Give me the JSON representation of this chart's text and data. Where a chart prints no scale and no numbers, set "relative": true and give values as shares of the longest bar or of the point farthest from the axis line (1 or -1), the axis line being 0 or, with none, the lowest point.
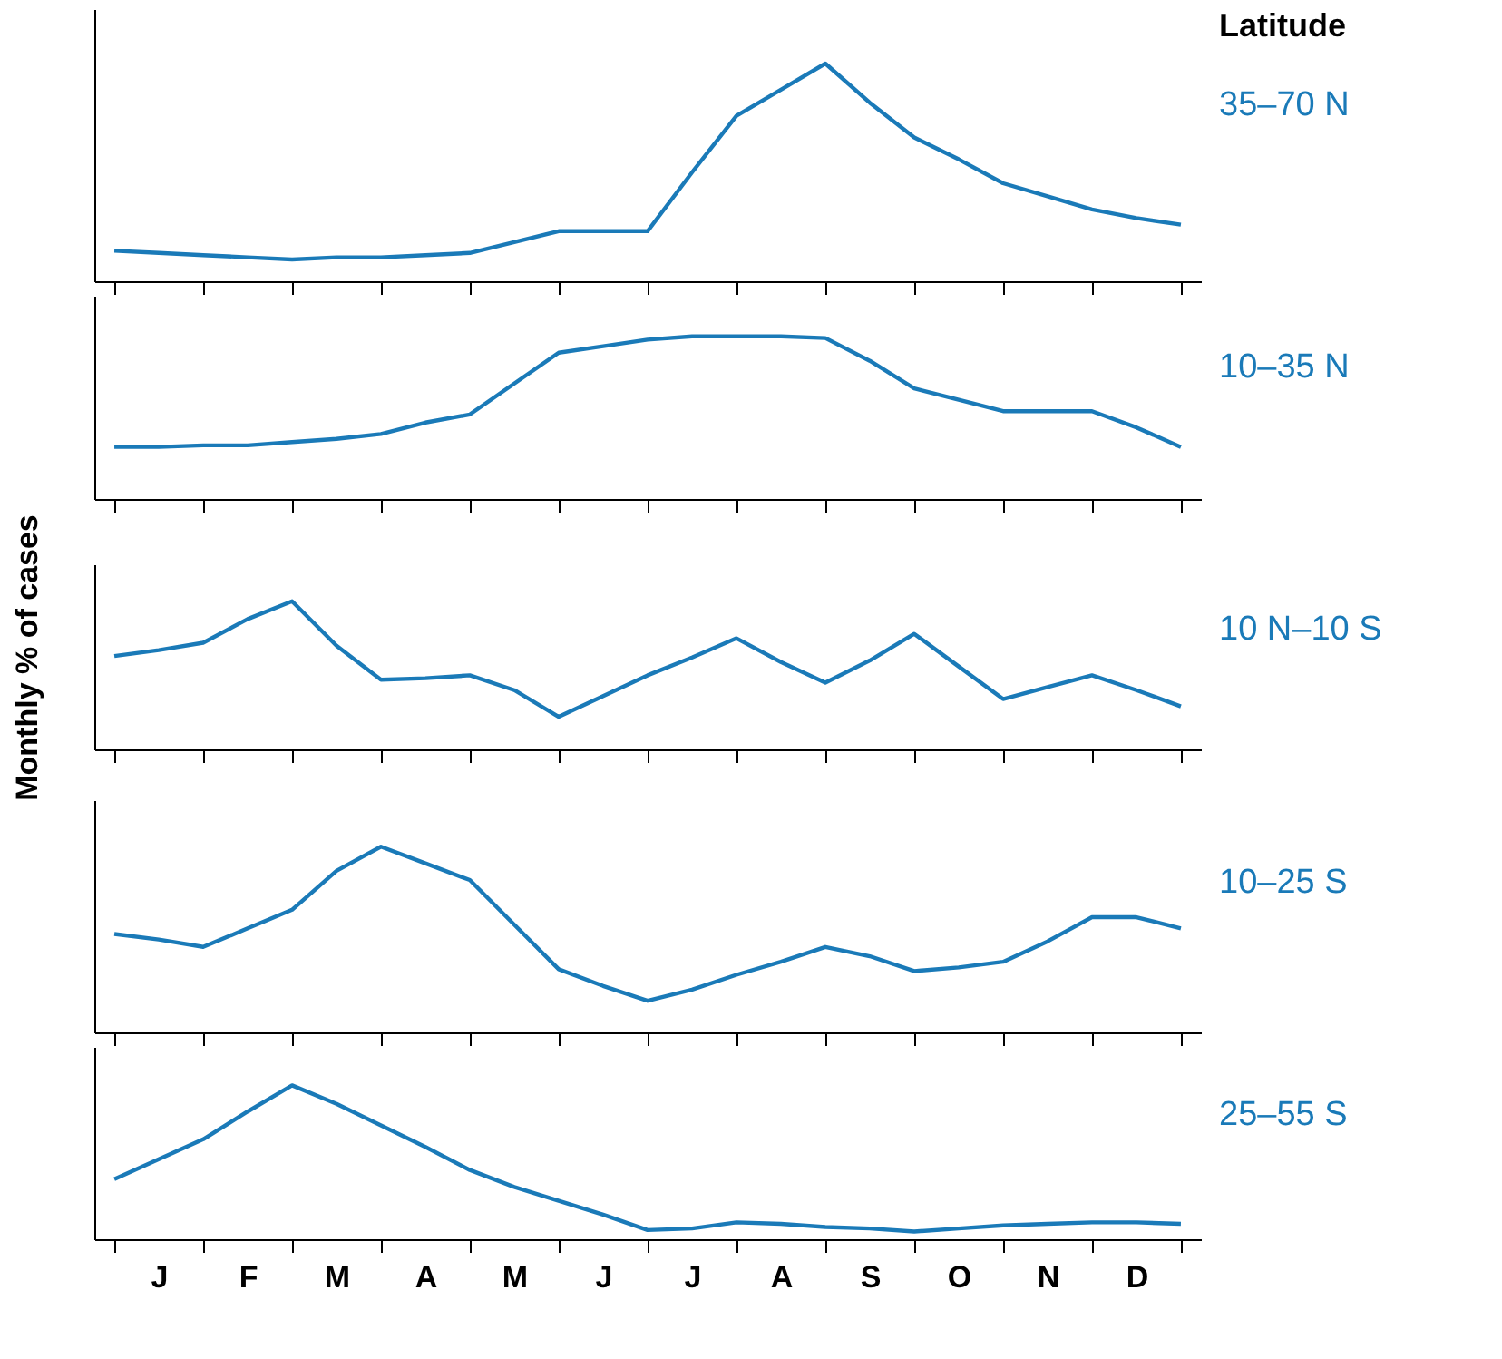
{
  "chart_data": [
    {
      "type": "line",
      "relative": true,
      "legend_title": "Latitude",
      "tick_labels": false,
      "grid": false,
      "categories": [
        null,
        null,
        null,
        null,
        null,
        null,
        null,
        null,
        null,
        null,
        null,
        null,
        null,
        null,
        null,
        null,
        null,
        null,
        null,
        null,
        null,
        null,
        null,
        null,
        null
      ],
      "series": [
        {
          "name": "35–70 N",
          "color": "#1a7ab8",
          "values": [
            0.14,
            0.13,
            0.12,
            0.11,
            0.1,
            0.11,
            0.11,
            0.12,
            0.13,
            0.18,
            0.23,
            0.23,
            0.23,
            0.5,
            0.76,
            0.88,
            1,
            0.82,
            0.66,
            0.56,
            0.45,
            0.39,
            0.33,
            0.29,
            0.26
          ]
        }
      ]
    },
    {
      "type": "line",
      "relative": true,
      "tick_labels": false,
      "grid": false,
      "categories": [
        null,
        null,
        null,
        null,
        null,
        null,
        null,
        null,
        null,
        null,
        null,
        null,
        null,
        null,
        null,
        null,
        null,
        null,
        null,
        null,
        null,
        null,
        null,
        null,
        null
      ],
      "series": [
        {
          "name": "10–35 N",
          "color": "#1a7ab8",
          "values": [
            0.32,
            0.32,
            0.33,
            0.33,
            0.35,
            0.37,
            0.4,
            0.47,
            0.52,
            0.71,
            0.9,
            0.94,
            0.98,
            1,
            1,
            1,
            0.99,
            0.85,
            0.68,
            0.61,
            0.54,
            0.54,
            0.54,
            0.44,
            0.32
          ]
        }
      ]
    },
    {
      "type": "line",
      "relative": true,
      "ylabel": "Monthly % of cases",
      "tick_labels": false,
      "grid": false,
      "categories": [
        null,
        null,
        null,
        null,
        null,
        null,
        null,
        null,
        null,
        null,
        null,
        null,
        null,
        null,
        null,
        null,
        null,
        null,
        null,
        null,
        null,
        null,
        null,
        null,
        null
      ],
      "series": [
        {
          "name": "10 N–10 S",
          "color": "#1a7ab8",
          "values": [
            0.63,
            0.67,
            0.72,
            0.88,
            1,
            0.7,
            0.47,
            0.48,
            0.5,
            0.4,
            0.22,
            0.36,
            0.5,
            0.62,
            0.75,
            0.59,
            0.45,
            0.6,
            0.78,
            0.56,
            0.34,
            0.42,
            0.5,
            0.4,
            0.29
          ]
        }
      ]
    },
    {
      "type": "line",
      "relative": true,
      "tick_labels": false,
      "grid": false,
      "categories": [
        null,
        null,
        null,
        null,
        null,
        null,
        null,
        null,
        null,
        null,
        null,
        null,
        null,
        null,
        null,
        null,
        null,
        null,
        null,
        null,
        null,
        null,
        null,
        null,
        null
      ],
      "series": [
        {
          "name": "10–25 S",
          "color": "#1a7ab8",
          "values": [
            0.53,
            0.5,
            0.46,
            0.56,
            0.66,
            0.87,
            1,
            0.91,
            0.82,
            0.58,
            0.34,
            0.25,
            0.17,
            0.23,
            0.31,
            0.38,
            0.46,
            0.41,
            0.33,
            0.35,
            0.38,
            0.49,
            0.62,
            0.62,
            0.56
          ]
        }
      ]
    },
    {
      "type": "line",
      "relative": true,
      "tick_labels": "x",
      "grid": false,
      "categories": [
        null,
        "J",
        null,
        "F",
        null,
        "M",
        null,
        "A",
        null,
        "M",
        null,
        "J",
        null,
        "J",
        null,
        "A",
        null,
        "S",
        null,
        "O",
        null,
        "N",
        null,
        "D",
        null
      ],
      "series": [
        {
          "name": "25–55 S",
          "color": "#1a7ab8",
          "values": [
            0.39,
            0.52,
            0.65,
            0.83,
            1,
            0.88,
            0.74,
            0.6,
            0.45,
            0.34,
            0.25,
            0.16,
            0.06,
            0.07,
            0.11,
            0.1,
            0.08,
            0.07,
            0.05,
            0.07,
            0.09,
            0.1,
            0.11,
            0.11,
            0.1
          ]
        }
      ]
    }
  ]
}
